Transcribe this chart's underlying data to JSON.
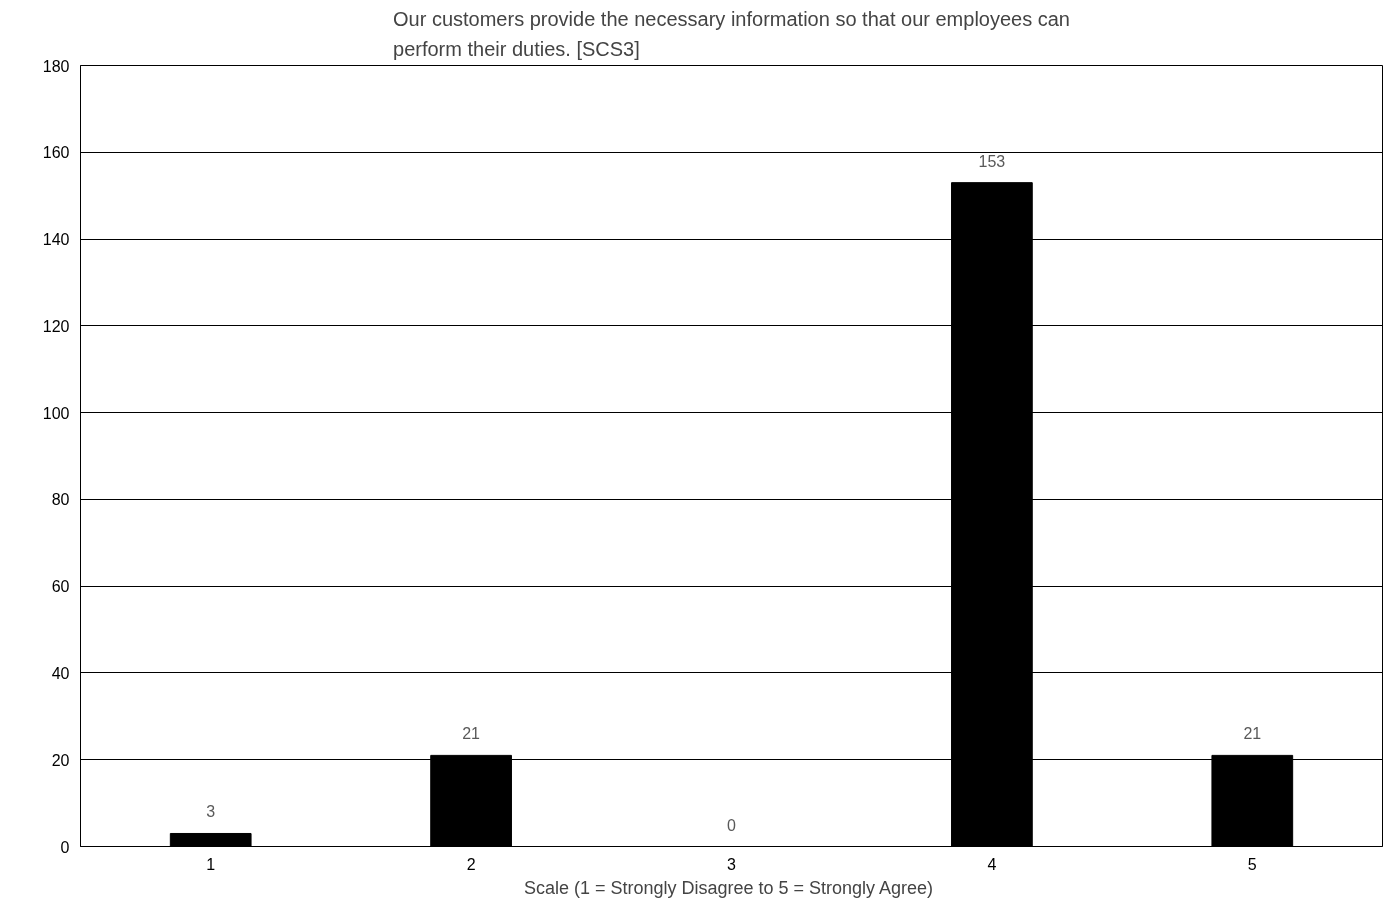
{
  "chart_data": {
    "type": "bar",
    "title": "Our customers provide the necessary information so that our employees can perform their duties. [SCS3]",
    "xlabel": "Scale (1 =  Strongly Disagree to 5 = Strongly Agree)",
    "categories": [
      "1",
      "2",
      "3",
      "4",
      "5"
    ],
    "values": [
      3,
      21,
      0,
      153,
      21
    ],
    "color": "#000000",
    "ylim": [
      0,
      180
    ],
    "yticks": [
      0,
      20,
      40,
      60,
      80,
      100,
      120,
      140,
      160,
      180
    ],
    "grid": "y",
    "data_labels": true
  }
}
